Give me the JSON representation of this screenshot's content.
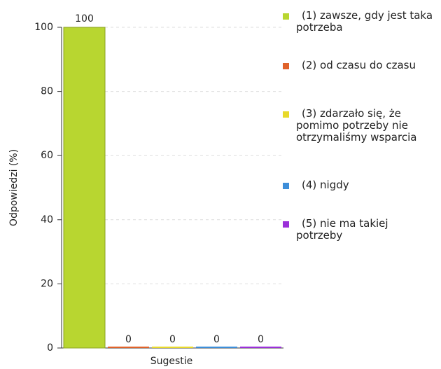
{
  "chart_data": {
    "type": "bar",
    "categories": [
      "Sugestie"
    ],
    "xlabel": "Sugestie",
    "ylabel": "Odpowiedzi (%)",
    "ylim": [
      0,
      100
    ],
    "yticks": [
      0,
      20,
      40,
      60,
      80,
      100
    ],
    "grid": true,
    "series": [
      {
        "name": "(1) zawsze, gdy jest taka potrzeba",
        "color": "#b8d630",
        "values": [
          100
        ]
      },
      {
        "name": "(2) od czasu do czasu",
        "color": "#e0622a",
        "values": [
          0
        ]
      },
      {
        "name": "(3) zdarzało się, że pomimo potrzeby nie otrzymaliśmy wsparcia",
        "color": "#e8d92a",
        "values": [
          0
        ]
      },
      {
        "name": "(4) nigdy",
        "color": "#3d8ed9",
        "values": [
          0
        ]
      },
      {
        "name": "(5) nie ma takiej potrzeby",
        "color": "#9b30d9",
        "values": [
          0
        ]
      }
    ]
  }
}
